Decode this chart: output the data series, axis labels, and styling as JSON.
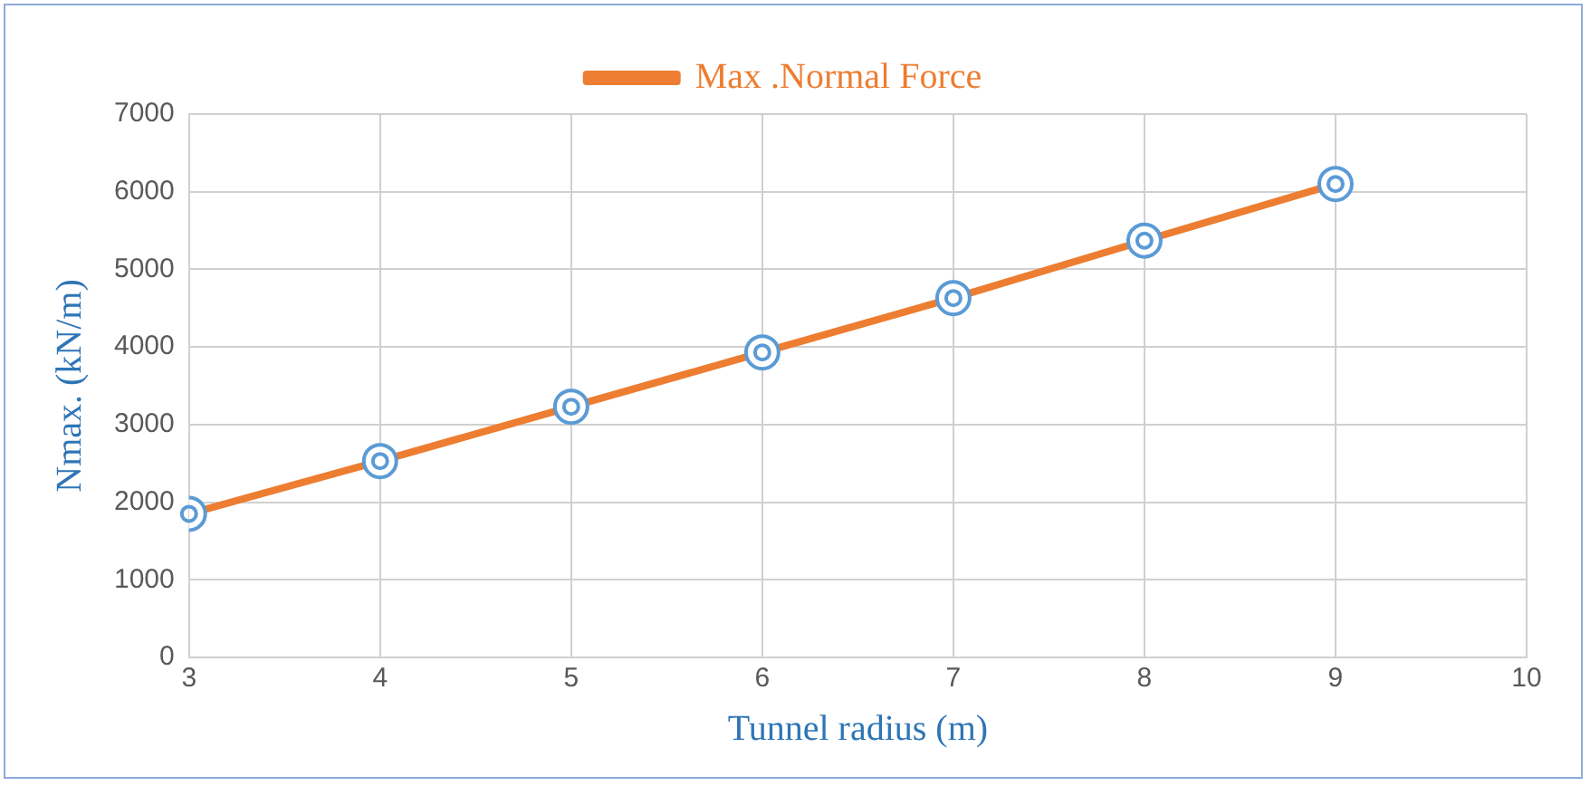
{
  "chart_data": {
    "type": "line",
    "xlabel": "Tunnel radius (m)",
    "ylabel": "Nmax. (kN/m)",
    "x": [
      3,
      4,
      5,
      6,
      7,
      8,
      9
    ],
    "series": [
      {
        "name": "Max .Normal Force",
        "color": "#ed7d31",
        "values": [
          1850,
          2530,
          3230,
          3930,
          4630,
          5370,
          6100
        ]
      }
    ],
    "xlim": [
      3,
      10
    ],
    "xticks": [
      3,
      4,
      5,
      6,
      7,
      8,
      9,
      10
    ],
    "ylim": [
      0,
      7000
    ],
    "yticks": [
      0,
      1000,
      2000,
      3000,
      4000,
      5000,
      6000,
      7000
    ],
    "grid": true,
    "legend": "top",
    "marker": "circle",
    "line_style": "solid"
  }
}
